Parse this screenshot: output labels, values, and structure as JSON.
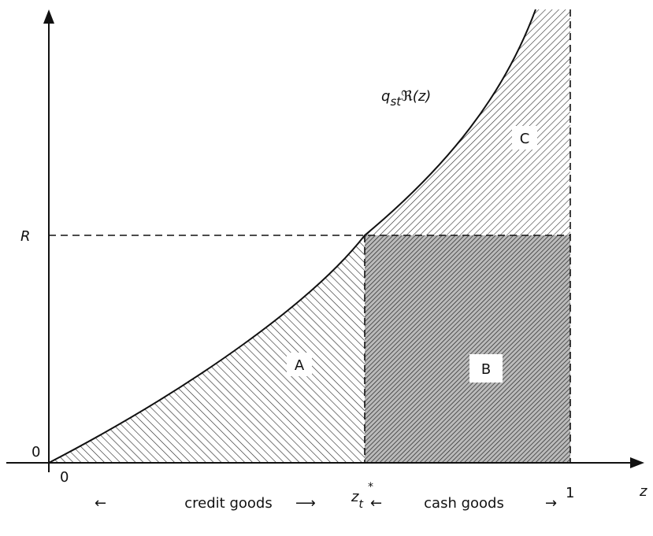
{
  "axes": {
    "y_label": "R",
    "y_origin": "0",
    "x_origin": "0",
    "x_label": "z",
    "x_one": "1",
    "z_star": {
      "base": "z",
      "subscript": "t",
      "superscript": "*"
    }
  },
  "curve_label": {
    "base": "q",
    "subscript": "st",
    "rest": "ℜ(z)"
  },
  "regions": [
    "A",
    "B",
    "C"
  ],
  "bottom": {
    "left_arrow_1": "←",
    "credit": "credit goods",
    "right_arrow_1": "⟶",
    "left_arrow_2": "←",
    "cash": "cash goods",
    "right_arrow_2": "→"
  }
}
